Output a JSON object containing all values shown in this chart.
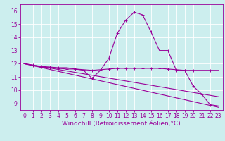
{
  "xlabel": "Windchill (Refroidissement éolien,°C)",
  "bg_color": "#cceeee",
  "line_color": "#990099",
  "grid_color": "#ffffff",
  "xlim": [
    -0.5,
    23.5
  ],
  "ylim": [
    8.5,
    16.5
  ],
  "xticks": [
    0,
    1,
    2,
    3,
    4,
    5,
    6,
    7,
    8,
    9,
    10,
    11,
    12,
    13,
    14,
    15,
    16,
    17,
    18,
    19,
    20,
    21,
    22,
    23
  ],
  "yticks": [
    9,
    10,
    11,
    12,
    13,
    14,
    15,
    16
  ],
  "line1_x": [
    0,
    1,
    2,
    3,
    4,
    5,
    6,
    7,
    8,
    9,
    10,
    11,
    12,
    13,
    14,
    15,
    16,
    17,
    18,
    19,
    20,
    21,
    22,
    23
  ],
  "line1_y": [
    12.0,
    11.9,
    11.8,
    11.75,
    11.7,
    11.7,
    11.6,
    11.5,
    10.9,
    11.5,
    12.4,
    14.3,
    15.3,
    15.9,
    15.7,
    14.4,
    13.0,
    13.0,
    11.5,
    11.5,
    10.3,
    9.7,
    8.9,
    8.8
  ],
  "line2_x": [
    0,
    1,
    2,
    3,
    4,
    5,
    6,
    7,
    8,
    9,
    10,
    11,
    12,
    13,
    14,
    15,
    16,
    17,
    18,
    19,
    20,
    21,
    22,
    23
  ],
  "line2_y": [
    12.0,
    11.85,
    11.75,
    11.7,
    11.65,
    11.6,
    11.6,
    11.55,
    11.5,
    11.55,
    11.6,
    11.65,
    11.65,
    11.65,
    11.65,
    11.65,
    11.65,
    11.6,
    11.55,
    11.5,
    11.5,
    11.5,
    11.5,
    11.5
  ],
  "line3_x": [
    0,
    23
  ],
  "line3_y": [
    12.0,
    8.7
  ],
  "line4_x": [
    0,
    23
  ],
  "line4_y": [
    12.0,
    9.5
  ],
  "marker": "+",
  "markersize": 3,
  "linewidth": 0.8,
  "tick_fontsize": 5.5,
  "xlabel_fontsize": 6.5
}
